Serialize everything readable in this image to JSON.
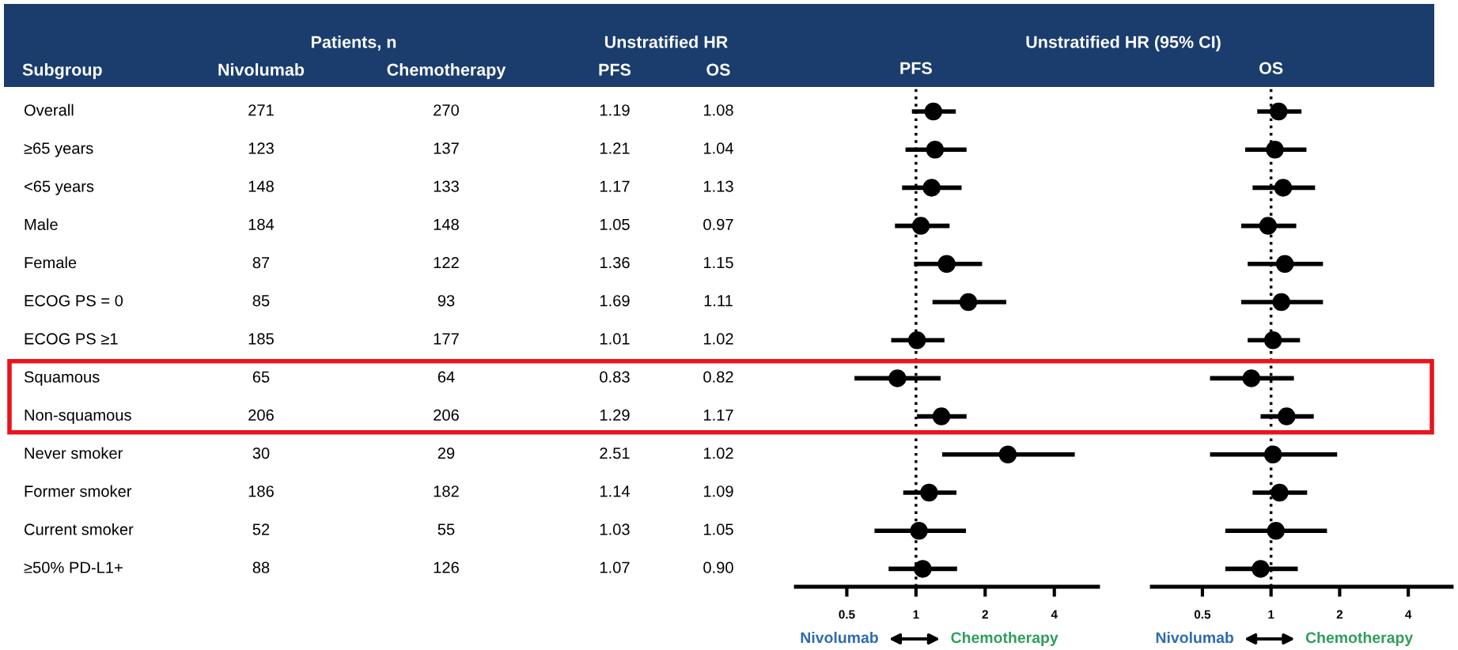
{
  "chart_data": [
    {
      "type": "other",
      "title": "Patients, n",
      "subtitle": "Unstratified HR",
      "ylabel": "Subgroup",
      "categories": [
        "Overall",
        "≥65 years",
        "<65 years",
        "Male",
        "Female",
        "ECOG PS = 0",
        "ECOG PS ≥1",
        "Squamous",
        "Non-squamous",
        "Never smoker",
        "Former smoker",
        "Current smoker",
        "≥50% PD-L1+"
      ],
      "series": [
        {
          "name": "Nivolumab",
          "values": [
            271,
            123,
            148,
            184,
            87,
            85,
            185,
            65,
            206,
            30,
            186,
            52,
            88
          ]
        },
        {
          "name": "Chemotherapy",
          "values": [
            270,
            137,
            133,
            148,
            122,
            93,
            177,
            64,
            206,
            29,
            182,
            55,
            126
          ]
        }
      ],
      "data_labels": true
    },
    {
      "type": "scatter",
      "orientation": "horizontal",
      "title": "PFS",
      "subtitle": "Unstratified HR (95% CI)",
      "categories": [
        null,
        null,
        null,
        null,
        null,
        null,
        null,
        null,
        null,
        null,
        null,
        null,
        null
      ],
      "series": [
        {
          "color": "#000000",
          "values": [
            1.19,
            1.21,
            1.17,
            1.05,
            1.36,
            1.69,
            1.01,
            0.83,
            1.29,
            2.51,
            1.14,
            1.03,
            1.07
          ],
          "value_labels": [
            "1.19",
            "1.21",
            "1.17",
            "1.05",
            "1.36",
            "1.69",
            "1.01",
            "0.83",
            "1.29",
            "2.51",
            "1.14",
            "1.03",
            "1.07"
          ],
          "errors": [
            [
              0.96,
              1.49
            ],
            [
              0.9,
              1.66
            ],
            [
              0.87,
              1.58
            ],
            [
              0.81,
              1.4
            ],
            [
              0.98,
              1.94
            ],
            [
              1.18,
              2.47
            ],
            [
              0.78,
              1.33
            ],
            [
              0.54,
              1.28
            ],
            [
              1.01,
              1.66
            ],
            [
              1.3,
              4.91
            ],
            [
              0.88,
              1.5
            ],
            [
              0.66,
              1.65
            ],
            [
              0.76,
              1.51
            ]
          ]
        }
      ],
      "log": "x",
      "xlim": [
        0.3,
        6.2
      ],
      "xticks": [
        0.5,
        1,
        2,
        4
      ],
      "tick_labels": "x",
      "marker": "circle",
      "grid": false,
      "legend": false,
      "ref_lines": [
        {
          "axis": "x",
          "value": 1,
          "color": "#000000",
          "line_style": "dotted"
        }
      ],
      "annotations": [
        "Nivolumab",
        "Chemotherapy"
      ]
    },
    {
      "type": "scatter",
      "orientation": "horizontal",
      "title": "OS",
      "categories": [
        null,
        null,
        null,
        null,
        null,
        null,
        null,
        null,
        null,
        null,
        null,
        null,
        null
      ],
      "series": [
        {
          "color": "#000000",
          "values": [
            1.08,
            1.04,
            1.13,
            0.97,
            1.15,
            1.11,
            1.02,
            0.82,
            1.17,
            1.02,
            1.09,
            1.05,
            0.9
          ],
          "value_labels": [
            "1.08",
            "1.04",
            "1.13",
            "0.97",
            "1.15",
            "1.11",
            "1.02",
            "0.82",
            "1.17",
            "1.02",
            "1.09",
            "1.05",
            "0.90"
          ],
          "errors": [
            [
              0.87,
              1.36
            ],
            [
              0.77,
              1.43
            ],
            [
              0.83,
              1.56
            ],
            [
              0.74,
              1.29
            ],
            [
              0.79,
              1.69
            ],
            [
              0.74,
              1.69
            ],
            [
              0.79,
              1.34
            ],
            [
              0.54,
              1.26
            ],
            [
              0.9,
              1.54
            ],
            [
              0.54,
              1.95
            ],
            [
              0.83,
              1.44
            ],
            [
              0.63,
              1.76
            ],
            [
              0.63,
              1.31
            ]
          ]
        }
      ],
      "log": "x",
      "xlim": [
        0.3,
        6.2
      ],
      "xticks": [
        0.5,
        1,
        2,
        4
      ],
      "tick_labels": "x",
      "marker": "circle",
      "grid": false,
      "legend": false,
      "ref_lines": [
        {
          "axis": "x",
          "value": 1,
          "color": "#000000",
          "line_style": "dotted"
        }
      ],
      "annotations": [
        "Nivolumab",
        "Chemotherapy"
      ]
    }
  ]
}
